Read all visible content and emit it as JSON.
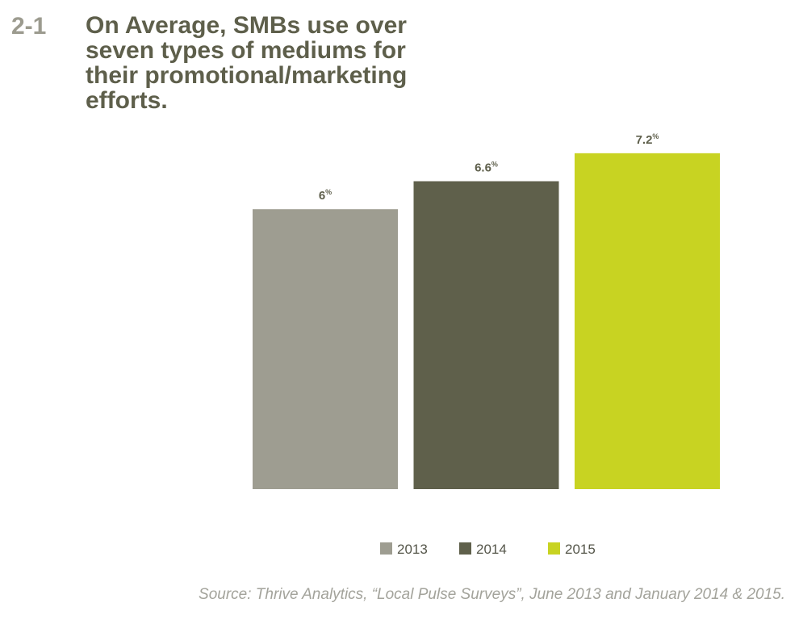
{
  "figure_number": "2-1",
  "chart_data": {
    "type": "bar",
    "title": "On Average, SMBs use over seven types of mediums for their promotional/marketing efforts.",
    "categories": [
      "2013",
      "2014",
      "2015"
    ],
    "values": [
      6,
      6.6,
      7.2
    ],
    "value_labels": [
      "6",
      "6.6",
      "7.2"
    ],
    "value_suffix": "%",
    "colors": [
      "#9e9d91",
      "#5f604b",
      "#c8d322"
    ],
    "ylim": [
      0,
      7.2
    ],
    "xlabel": "",
    "ylabel": "",
    "grid": false,
    "legend": {
      "placement": "bottom",
      "entries": [
        "2013",
        "2014",
        "2015"
      ]
    }
  },
  "source": "Source: Thrive Analytics, “Local Pulse Surveys”, June 2013 and January 2014 & 2015."
}
